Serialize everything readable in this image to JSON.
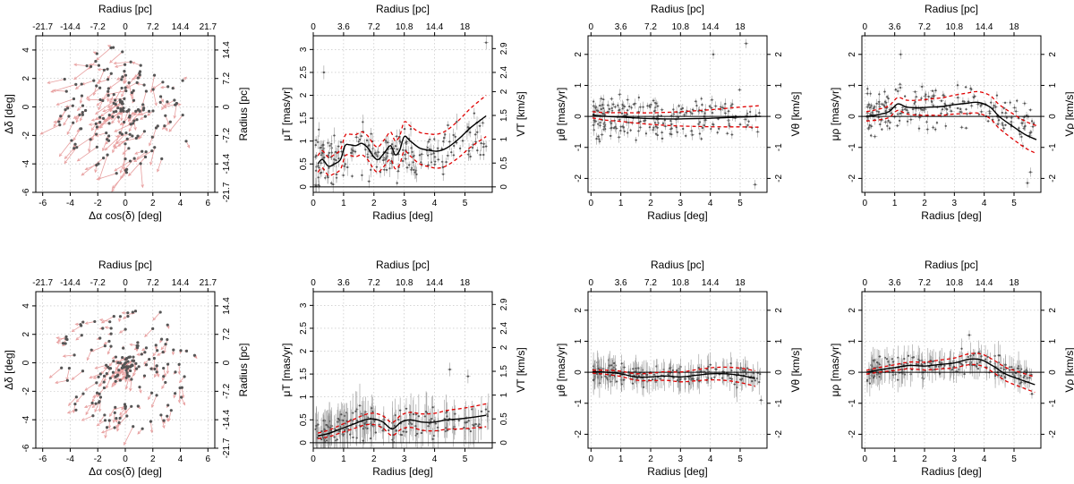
{
  "figure": {
    "panel_titles": {
      "top_axis_label": "Radius [pc]",
      "bottom_axis_label_radius": "Radius [deg]",
      "bottom_axis_label_ra": "Δα cos(δ) [deg]",
      "left_axis_label_dec": "Δδ [deg]",
      "right_axis_label_radius": "Radius [pc]",
      "ylabel_mut": "μT [mas/yr]",
      "ylabel_mutheta": "μθ [mas/yr]",
      "ylabel_murho": "μρ [mas/yr]",
      "y2label_vt": "VT [km/s]",
      "y2label_vtheta": "Vθ [km/s]",
      "y2label_vrho": "Vρ [km/s]"
    }
  },
  "style": {
    "point_color": "#555555",
    "arrow_color": "#e8a0a0",
    "errorbar_color": "#9a9a9a",
    "trend_color": "#000000",
    "band_color": "#e00000",
    "grid_color": "#bbbbbb"
  },
  "chart_data": [
    {
      "id": "r1c1",
      "type": "scatter",
      "subtype": "vector-field",
      "xlabel": "Δα cos(δ) [deg]",
      "ylabel": "Δδ [deg]",
      "top_label": "Radius [pc]",
      "right_label": "Radius [pc]",
      "xlim": [
        -6.5,
        6.5
      ],
      "ylim": [
        -6,
        5
      ],
      "xticks": [
        -6,
        -4,
        -2,
        0,
        2,
        4,
        6
      ],
      "yticks": [
        -6,
        -4,
        -2,
        0,
        2,
        4
      ],
      "top_ticks": [
        "-21.7",
        "-14.4",
        "-7.2",
        "0",
        "7.2",
        "14.4",
        "21.7"
      ],
      "top_tick_values": [
        -6,
        -4,
        -2,
        0,
        2,
        4,
        6
      ],
      "right_ticks": [
        "14.4",
        "7.2",
        "0",
        "-7.2",
        "-14.4",
        "-21.7"
      ],
      "right_tick_values": [
        4,
        2,
        0,
        -2,
        -4,
        -6
      ],
      "arrow_scale": 1.6,
      "seed": 11
    },
    {
      "id": "r1c2",
      "type": "scatter",
      "subtype": "errorbar-trend",
      "xlabel": "Radius [deg]",
      "ylabel": "μT [mas/yr]",
      "top_label": "Radius [pc]",
      "right_label": "VT [km/s]",
      "xlim": [
        0,
        5.9
      ],
      "ylim": [
        -0.12,
        3.3
      ],
      "xticks": [
        0,
        1,
        2,
        3,
        4,
        5
      ],
      "yticks": [
        0,
        0.5,
        1,
        1.5,
        2,
        2.5,
        3
      ],
      "top_ticks": [
        "0",
        "3.6",
        "7.2",
        "10.8",
        "14.4",
        "18"
      ],
      "top_tick_values": [
        0,
        1,
        2,
        3,
        4,
        5
      ],
      "right_ticks": [
        "0",
        "0.5",
        "1",
        "1.5",
        "2",
        "2.4",
        "2.9"
      ],
      "right_tick_values": [
        0,
        0.52,
        1.04,
        1.56,
        2.08,
        2.5,
        3.02
      ],
      "zero_line": 0,
      "trend": [
        [
          0.15,
          0.5
        ],
        [
          0.3,
          0.6
        ],
        [
          0.5,
          0.45
        ],
        [
          0.7,
          0.5
        ],
        [
          0.9,
          0.6
        ],
        [
          1.05,
          0.9
        ],
        [
          1.2,
          0.92
        ],
        [
          1.4,
          0.9
        ],
        [
          1.6,
          0.95
        ],
        [
          1.8,
          0.85
        ],
        [
          2.0,
          0.65
        ],
        [
          2.15,
          0.6
        ],
        [
          2.35,
          0.75
        ],
        [
          2.55,
          0.9
        ],
        [
          2.7,
          0.7
        ],
        [
          2.85,
          0.8
        ],
        [
          3.0,
          1.1
        ],
        [
          3.2,
          1.0
        ],
        [
          3.5,
          0.85
        ],
        [
          3.8,
          0.8
        ],
        [
          4.1,
          0.78
        ],
        [
          4.4,
          0.85
        ],
        [
          4.8,
          1.05
        ],
        [
          5.2,
          1.3
        ],
        [
          5.7,
          1.55
        ]
      ],
      "band_width": [
        0.18,
        0.45
      ],
      "scatter": {
        "n": 230,
        "base": 0.6,
        "spread": 0.6,
        "x_max": 5.7,
        "err_x": 0.05,
        "err_y": 0.12,
        "seed": 21
      },
      "outliers": [
        [
          5.7,
          3.15
        ],
        [
          0.35,
          2.5
        ]
      ]
    },
    {
      "id": "r1c3",
      "type": "scatter",
      "subtype": "errorbar-trend",
      "xlabel": "Radius [deg]",
      "ylabel": "μθ [mas/yr]",
      "top_label": "Radius [pc]",
      "right_label": "Vθ [km/s]",
      "xlim": [
        -0.1,
        5.9
      ],
      "ylim": [
        -2.45,
        2.6
      ],
      "xticks": [
        0,
        1,
        2,
        3,
        4,
        5
      ],
      "yticks": [
        -2,
        -1,
        0,
        1,
        2
      ],
      "top_ticks": [
        "0",
        "3.6",
        "7.2",
        "10.8",
        "14.4",
        "18"
      ],
      "top_tick_values": [
        0,
        1,
        2,
        3,
        4,
        5
      ],
      "right_ticks": [
        "2",
        "1",
        "0",
        "-1",
        "-2"
      ],
      "right_tick_values": [
        2,
        1,
        0,
        -1,
        -2
      ],
      "zero_line": 0,
      "trend": [
        [
          0.05,
          0.05
        ],
        [
          0.5,
          0.0
        ],
        [
          1.0,
          -0.02
        ],
        [
          1.5,
          -0.05
        ],
        [
          2.0,
          -0.07
        ],
        [
          2.5,
          -0.08
        ],
        [
          3.0,
          -0.08
        ],
        [
          3.5,
          -0.07
        ],
        [
          4.0,
          -0.06
        ],
        [
          4.5,
          -0.04
        ],
        [
          5.0,
          -0.02
        ],
        [
          5.7,
          0.0
        ]
      ],
      "band_width": [
        0.1,
        0.35
      ],
      "scatter": {
        "n": 230,
        "base": 0.0,
        "spread": 0.75,
        "x_max": 5.6,
        "err_x": 0.05,
        "err_y": 0.12,
        "seed": 31
      },
      "outliers": [
        [
          5.2,
          2.35
        ],
        [
          4.1,
          2.0
        ],
        [
          5.5,
          -2.2
        ]
      ]
    },
    {
      "id": "r1c4",
      "type": "scatter",
      "subtype": "errorbar-trend",
      "xlabel": "Radius [deg]",
      "ylabel": "μρ [mas/yr]",
      "top_label": "Radius [pc]",
      "right_label": "Vρ [km/s]",
      "xlim": [
        -0.1,
        5.9
      ],
      "ylim": [
        -2.45,
        2.6
      ],
      "xticks": [
        0,
        1,
        2,
        3,
        4,
        5
      ],
      "yticks": [
        -2,
        -1,
        0,
        1,
        2
      ],
      "top_ticks": [
        "0",
        "3.6",
        "7.2",
        "10.8",
        "14.4",
        "18"
      ],
      "top_tick_values": [
        0,
        1,
        2,
        3,
        4,
        5
      ],
      "right_ticks": [
        "2",
        "1",
        "0",
        "-1",
        "-2"
      ],
      "right_tick_values": [
        2,
        1,
        0,
        -1,
        -2
      ],
      "zero_line": 0,
      "trend": [
        [
          0.05,
          0.0
        ],
        [
          0.4,
          0.05
        ],
        [
          0.8,
          0.15
        ],
        [
          1.1,
          0.4
        ],
        [
          1.4,
          0.3
        ],
        [
          1.8,
          0.28
        ],
        [
          2.2,
          0.3
        ],
        [
          2.6,
          0.32
        ],
        [
          3.0,
          0.38
        ],
        [
          3.4,
          0.42
        ],
        [
          3.8,
          0.45
        ],
        [
          4.2,
          0.3
        ],
        [
          4.5,
          0.0
        ],
        [
          5.0,
          -0.35
        ],
        [
          5.4,
          -0.6
        ],
        [
          5.75,
          -0.75
        ]
      ],
      "band_width": [
        0.15,
        0.45
      ],
      "scatter": {
        "n": 220,
        "base": 0.25,
        "spread": 0.75,
        "x_max": 5.6,
        "err_x": 0.06,
        "err_y": 0.1,
        "seed": 41
      },
      "outliers": [
        [
          1.2,
          2.0
        ],
        [
          5.55,
          -1.8
        ],
        [
          5.45,
          -2.15
        ]
      ]
    },
    {
      "id": "r2c1",
      "type": "scatter",
      "subtype": "vector-field",
      "xlabel": "Δα cos(δ) [deg]",
      "ylabel": "Δδ [deg]",
      "top_label": "Radius [pc]",
      "right_label": "Radius [pc]",
      "xlim": [
        -6.5,
        6.5
      ],
      "ylim": [
        -6,
        5
      ],
      "xticks": [
        -6,
        -4,
        -2,
        0,
        2,
        4,
        6
      ],
      "yticks": [
        -6,
        -4,
        -2,
        0,
        2,
        4
      ],
      "top_ticks": [
        "-21.7",
        "-14.4",
        "-7.2",
        "0",
        "7.2",
        "14.4",
        "21.7"
      ],
      "top_tick_values": [
        -6,
        -4,
        -2,
        0,
        2,
        4,
        6
      ],
      "right_ticks": [
        "14.4",
        "7.2",
        "0",
        "-7.2",
        "-14.4",
        "-21.7"
      ],
      "right_tick_values": [
        4,
        2,
        0,
        -2,
        -4,
        -6
      ],
      "arrow_scale": 1.0,
      "seed": 17
    },
    {
      "id": "r2c2",
      "type": "scatter",
      "subtype": "errorbar-trend",
      "xlabel": "Radius [deg]",
      "ylabel": "μT [mas/yr]",
      "top_label": "Radius [pc]",
      "right_label": "VT [km/s]",
      "xlim": [
        0,
        5.9
      ],
      "ylim": [
        -0.12,
        3.3
      ],
      "xticks": [
        0,
        1,
        2,
        3,
        4,
        5
      ],
      "yticks": [
        0,
        0.5,
        1,
        1.5,
        2,
        2.5,
        3
      ],
      "top_ticks": [
        "0",
        "3.6",
        "7.2",
        "10.8",
        "14.4",
        "18"
      ],
      "top_tick_values": [
        0,
        1,
        2,
        3,
        4,
        5
      ],
      "right_ticks": [
        "0",
        "0.5",
        "1",
        "1.5",
        "2",
        "2.4",
        "2.9"
      ],
      "right_tick_values": [
        0,
        0.52,
        1.04,
        1.56,
        2.08,
        2.5,
        3.02
      ],
      "zero_line": 0,
      "trend": [
        [
          0.15,
          0.15
        ],
        [
          0.5,
          0.2
        ],
        [
          0.9,
          0.3
        ],
        [
          1.3,
          0.4
        ],
        [
          1.7,
          0.5
        ],
        [
          2.0,
          0.52
        ],
        [
          2.3,
          0.45
        ],
        [
          2.6,
          0.3
        ],
        [
          2.9,
          0.45
        ],
        [
          3.2,
          0.5
        ],
        [
          3.6,
          0.45
        ],
        [
          4.0,
          0.45
        ],
        [
          4.4,
          0.5
        ],
        [
          4.8,
          0.52
        ],
        [
          5.2,
          0.55
        ],
        [
          5.7,
          0.6
        ]
      ],
      "band_width": [
        0.06,
        0.25
      ],
      "scatter": {
        "n": 220,
        "base": 0.35,
        "spread": 0.35,
        "x_max": 5.7,
        "err_x": 0.04,
        "err_y": 0.3,
        "seed": 51
      },
      "outliers": [
        [
          5.1,
          1.45
        ],
        [
          4.5,
          1.6
        ]
      ]
    },
    {
      "id": "r2c3",
      "type": "scatter",
      "subtype": "errorbar-trend",
      "xlabel": "Radius [deg]",
      "ylabel": "μθ [mas/yr]",
      "top_label": "Radius [pc]",
      "right_label": "Vθ [km/s]",
      "xlim": [
        -0.1,
        5.9
      ],
      "ylim": [
        -2.45,
        2.6
      ],
      "xticks": [
        0,
        1,
        2,
        3,
        4,
        5
      ],
      "yticks": [
        -2,
        -1,
        0,
        1,
        2
      ],
      "top_ticks": [
        "0",
        "3.6",
        "7.2",
        "10.8",
        "14.4",
        "18"
      ],
      "top_tick_values": [
        0,
        1,
        2,
        3,
        4,
        5
      ],
      "right_ticks": [
        "2",
        "1",
        "0",
        "-1",
        "-2"
      ],
      "right_tick_values": [
        2,
        1,
        0,
        -1,
        -2
      ],
      "zero_line": 0,
      "trend": [
        [
          0.05,
          0.02
        ],
        [
          0.5,
          0.0
        ],
        [
          1.0,
          -0.05
        ],
        [
          1.5,
          -0.15
        ],
        [
          2.0,
          -0.15
        ],
        [
          2.5,
          -0.12
        ],
        [
          3.0,
          -0.15
        ],
        [
          3.5,
          -0.1
        ],
        [
          4.0,
          -0.05
        ],
        [
          4.5,
          -0.05
        ],
        [
          5.0,
          -0.1
        ],
        [
          5.5,
          -0.2
        ]
      ],
      "band_width": [
        0.05,
        0.25
      ],
      "scatter": {
        "n": 220,
        "base": -0.05,
        "spread": 0.35,
        "x_max": 5.6,
        "err_x": 0.04,
        "err_y": 0.3,
        "seed": 61
      },
      "outliers": [
        [
          5.7,
          -0.9
        ]
      ]
    },
    {
      "id": "r2c4",
      "type": "scatter",
      "subtype": "errorbar-trend",
      "xlabel": "Radius [deg]",
      "ylabel": "μρ [mas/yr]",
      "top_label": "Radius [pc]",
      "right_label": "Vρ [km/s]",
      "xlim": [
        -0.1,
        5.9
      ],
      "ylim": [
        -2.45,
        2.6
      ],
      "xticks": [
        0,
        1,
        2,
        3,
        4,
        5
      ],
      "yticks": [
        -2,
        -1,
        0,
        1,
        2
      ],
      "top_ticks": [
        "0",
        "3.6",
        "7.2",
        "10.8",
        "14.4",
        "18"
      ],
      "top_tick_values": [
        0,
        1,
        2,
        3,
        4,
        5
      ],
      "right_ticks": [
        "2",
        "1",
        "0",
        "-1",
        "-2"
      ],
      "right_tick_values": [
        2,
        1,
        0,
        -1,
        -2
      ],
      "zero_line": 0,
      "trend": [
        [
          0.05,
          0.0
        ],
        [
          0.5,
          0.08
        ],
        [
          1.0,
          0.15
        ],
        [
          1.5,
          0.22
        ],
        [
          2.0,
          0.2
        ],
        [
          2.5,
          0.25
        ],
        [
          3.0,
          0.3
        ],
        [
          3.5,
          0.42
        ],
        [
          3.9,
          0.4
        ],
        [
          4.3,
          0.2
        ],
        [
          4.7,
          -0.05
        ],
        [
          5.1,
          -0.2
        ],
        [
          5.7,
          -0.4
        ]
      ],
      "band_width": [
        0.06,
        0.25
      ],
      "scatter": {
        "n": 220,
        "base": 0.2,
        "spread": 0.4,
        "x_max": 5.6,
        "err_x": 0.04,
        "err_y": 0.3,
        "seed": 71
      },
      "outliers": [
        [
          3.5,
          1.2
        ],
        [
          5.6,
          -0.7
        ]
      ]
    }
  ]
}
